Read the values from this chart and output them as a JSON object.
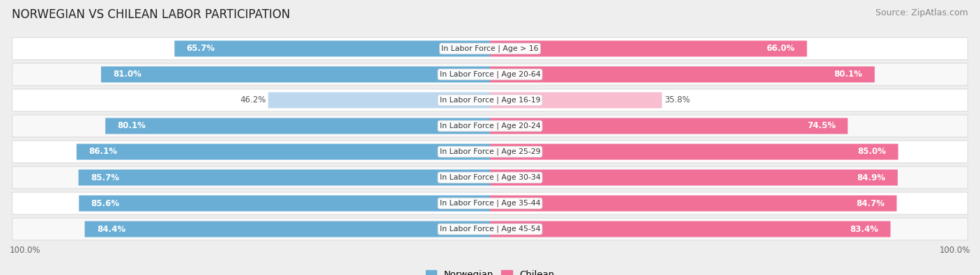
{
  "title": "NORWEGIAN VS CHILEAN LABOR PARTICIPATION",
  "source": "Source: ZipAtlas.com",
  "categories": [
    "In Labor Force | Age > 16",
    "In Labor Force | Age 20-64",
    "In Labor Force | Age 16-19",
    "In Labor Force | Age 20-24",
    "In Labor Force | Age 25-29",
    "In Labor Force | Age 30-34",
    "In Labor Force | Age 35-44",
    "In Labor Force | Age 45-54"
  ],
  "norwegian_values": [
    65.7,
    81.0,
    46.2,
    80.1,
    86.1,
    85.7,
    85.6,
    84.4
  ],
  "chilean_values": [
    66.0,
    80.1,
    35.8,
    74.5,
    85.0,
    84.9,
    84.7,
    83.4
  ],
  "norwegian_color_full": "#6AAED6",
  "norwegian_color_light": "#BDD8EE",
  "chilean_color_full": "#F07098",
  "chilean_color_light": "#F9BDD0",
  "bg_color": "#eeeeee",
  "row_bg_even": "#f8f8f8",
  "row_bg_odd": "#ffffff",
  "max_value": 100.0,
  "bar_height": 0.62,
  "label_fontsize": 8.5,
  "title_fontsize": 12,
  "source_fontsize": 9,
  "legend_fontsize": 9.5,
  "light_row_index": 2
}
